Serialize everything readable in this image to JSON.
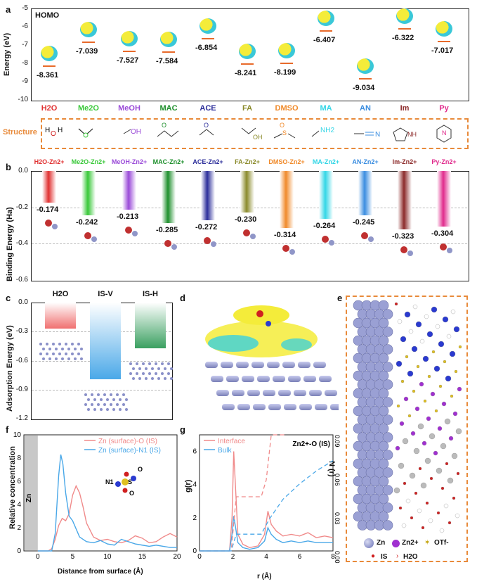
{
  "panels": {
    "a": {
      "label": "a",
      "tag": "HOMO",
      "ylabel": "Energy (eV)",
      "yticks": [
        "-5",
        "-6",
        "-7",
        "-8",
        "-9",
        "-10"
      ],
      "values": [
        "-8.361",
        "-7.039",
        "-7.527",
        "-7.584",
        "-6.854",
        "-8.241",
        "-8.199",
        "-6.407",
        "-9.034",
        "-6.322",
        "-7.017"
      ],
      "molecules": [
        "H2O",
        "Me2O",
        "MeOH",
        "MAC",
        "ACE",
        "FA",
        "DMSO",
        "MA",
        "AN",
        "Im",
        "Py"
      ],
      "structure_label": "Structure",
      "structure_texts": [
        "H",
        "O",
        "H",
        "OH",
        "O",
        "O",
        "OH",
        "O",
        "S",
        "NH2",
        "N",
        "NH",
        "N"
      ]
    },
    "b": {
      "label": "b",
      "ylabel": "Binding Energy (Ha)",
      "yticks": [
        "0.0",
        "-0.2",
        "-0.4",
        "-0.6"
      ],
      "complex_names": [
        "H2O-Zn2+",
        "Me2O-Zn2+",
        "MeOH-Zn2+",
        "MAC-Zn2+",
        "ACE-Zn2+",
        "FA-Zn2+",
        "DMSO-Zn2+",
        "MA-Zn2+",
        "AN-Zn2+",
        "Im-Zn2+",
        "Py-Zn2+"
      ],
      "values": [
        "-0.174",
        "-0.242",
        "-0.213",
        "-0.285",
        "-0.272",
        "-0.230",
        "-0.314",
        "-0.264",
        "-0.245",
        "-0.323",
        "-0.304"
      ],
      "colors": [
        "#e03030",
        "#39c839",
        "#9a4ad8",
        "#1e8f2c",
        "#2b2d9a",
        "#8a8a2a",
        "#f08a2a",
        "#33d6e6",
        "#3a8de0",
        "#8c2a2a",
        "#e02a8c"
      ]
    },
    "c": {
      "label": "c",
      "ylabel": "Adsorption Energy (eV)",
      "yticks": [
        "0.0",
        "-0.3",
        "-0.6",
        "-0.9",
        "-1.2"
      ],
      "columns": [
        "H2O",
        "IS-V",
        "IS-H"
      ]
    },
    "d": {
      "label": "d"
    },
    "e": {
      "label": "e",
      "legend": [
        "Zn",
        "Zn2+",
        "OTf-",
        "IS",
        "H2O"
      ]
    },
    "f": {
      "label": "f",
      "xlabel": "Distance from surface (Å)",
      "ylabel": "Relative concentration",
      "legend": [
        "Zn (surface)-O (IS)",
        "Zn (surface)-N1 (IS)"
      ],
      "zn_label": "Zn",
      "xticks": [
        "0",
        "5",
        "10",
        "15",
        "20"
      ],
      "yticks": [
        "0",
        "2",
        "4",
        "6",
        "8",
        "10"
      ],
      "inset": {
        "n1": "N1",
        "o1": "O",
        "s": "S",
        "o2": "O"
      }
    },
    "g": {
      "label": "g",
      "xlabel": "r (Å)",
      "ylabel": "g(r)",
      "y2label": "N (r)",
      "legend": [
        "Interface",
        "Bulk"
      ],
      "note": "Zn2+-O (IS)",
      "xticks": [
        "0",
        "2",
        "4",
        "6",
        "8"
      ],
      "yticks": [
        "0",
        "2",
        "4",
        "6"
      ],
      "y2ticks": [
        "0.00",
        "0.03",
        "0.06",
        "0.09"
      ]
    }
  },
  "chart_data": [
    {
      "type": "line",
      "title": "f",
      "xlabel": "Distance from surface (Å)",
      "ylabel": "Relative concentration",
      "xlim": [
        -2,
        20
      ],
      "ylim": [
        0,
        10
      ],
      "series": [
        {
          "name": "Zn (surface)-O (IS)",
          "color": "#f08a8a",
          "x": [
            0,
            1.5,
            2,
            2.5,
            3,
            3.5,
            4,
            4.5,
            5,
            5.5,
            6,
            6.5,
            7,
            8,
            9,
            10,
            11,
            12,
            13,
            14,
            15,
            16,
            17,
            18,
            19,
            20
          ],
          "values": [
            0,
            0,
            0.2,
            1,
            2.2,
            2.8,
            2.6,
            3.2,
            4.8,
            5.6,
            5,
            3.8,
            2.4,
            1.2,
            0.9,
            1,
            0.8,
            0.7,
            0.9,
            1.3,
            1.1,
            0.7,
            0.8,
            1.2,
            1.5,
            1.2
          ]
        },
        {
          "name": "Zn (surface)-N1 (IS)",
          "color": "#4aa8e8",
          "x": [
            0,
            2,
            2.5,
            3,
            3.3,
            3.6,
            4,
            4.5,
            5,
            6,
            7,
            8,
            9,
            10,
            11,
            12,
            13,
            14,
            15,
            16,
            17,
            18,
            19,
            20
          ],
          "values": [
            0,
            0,
            1.5,
            6.5,
            8.3,
            7.5,
            5,
            3,
            2.6,
            1.2,
            0.8,
            0.7,
            0.9,
            0.6,
            0.5,
            1,
            0.8,
            0.6,
            0.5,
            0.4,
            0.5,
            0.4,
            0.3,
            0.3
          ]
        }
      ]
    },
    {
      "type": "line",
      "title": "g",
      "xlabel": "r (Å)",
      "ylabel": "g(r)",
      "xlim": [
        0,
        8
      ],
      "ylim": [
        0,
        7
      ],
      "series": [
        {
          "name": "Interface",
          "color": "#f08a8a",
          "x": [
            0,
            1.8,
            1.95,
            2.05,
            2.15,
            2.3,
            2.6,
            3,
            3.5,
            3.9,
            4.1,
            4.3,
            4.6,
            5,
            5.5,
            6,
            6.5,
            7,
            7.5,
            8
          ],
          "values": [
            0,
            0,
            2,
            6,
            4,
            1,
            0.4,
            0.2,
            0.3,
            1,
            2.4,
            1.6,
            1.2,
            0.9,
            1,
            0.9,
            1.1,
            0.8,
            0.9,
            0.8
          ]
        },
        {
          "name": "Bulk",
          "color": "#4aa8e8",
          "x": [
            0,
            1.8,
            1.95,
            2.05,
            2.15,
            2.3,
            2.6,
            3,
            3.5,
            3.9,
            4.1,
            4.3,
            4.6,
            5,
            5.5,
            6,
            6.5,
            7,
            7.5,
            8
          ],
          "values": [
            0,
            0,
            1,
            2.1,
            1.5,
            0.5,
            0.2,
            0.1,
            0.2,
            0.6,
            1.4,
            1,
            0.7,
            0.5,
            0.6,
            0.5,
            0.6,
            0.5,
            0.5,
            0.5
          ]
        }
      ]
    },
    {
      "type": "bar",
      "title": "c",
      "ylabel": "Adsorption Energy (eV)",
      "categories": [
        "H2O",
        "IS-V",
        "IS-H"
      ],
      "values": [
        -0.27,
        -0.79,
        -0.47
      ],
      "ylim": [
        -1.2,
        0
      ]
    }
  ]
}
